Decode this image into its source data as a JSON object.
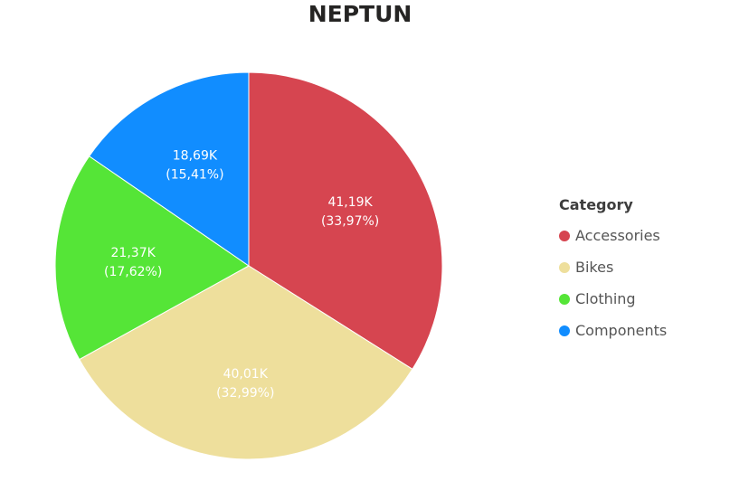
{
  "chart_data": {
    "type": "pie",
    "title": "NEPTUN",
    "legend_title": "Category",
    "legend_position": "right",
    "slices": [
      {
        "name": "Accessories",
        "value": 41190,
        "value_label": "41,19K",
        "percent_label": "(33,97%)",
        "color": "#d64550"
      },
      {
        "name": "Bikes",
        "value": 40010,
        "value_label": "40,01K",
        "percent_label": "(32,99%)",
        "color": "#eedf9c"
      },
      {
        "name": "Clothing",
        "value": 21370,
        "value_label": "21,37K",
        "percent_label": "(17,62%)",
        "color": "#55e537"
      },
      {
        "name": "Components",
        "value": 18690,
        "value_label": "18,69K",
        "percent_label": "(15,41%)",
        "color": "#118dff"
      }
    ]
  }
}
